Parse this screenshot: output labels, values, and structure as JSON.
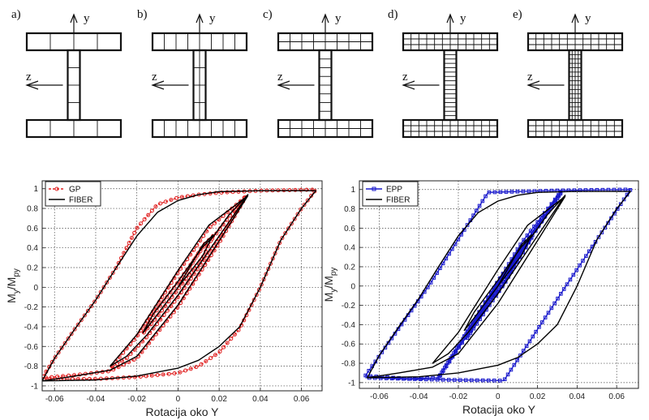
{
  "sections": [
    {
      "label": "a)",
      "y_axis": "y",
      "z_axis": "z",
      "flange_cols": 4,
      "flange_rows": 1,
      "web_cols": 1,
      "web_rows": 4
    },
    {
      "label": "b)",
      "y_axis": "y",
      "z_axis": "z",
      "flange_cols": 8,
      "flange_rows": 1,
      "web_cols": 2,
      "web_rows": 4
    },
    {
      "label": "c)",
      "y_axis": "y",
      "z_axis": "z",
      "flange_cols": 8,
      "flange_rows": 2,
      "web_cols": 1,
      "web_rows": 8
    },
    {
      "label": "d)",
      "y_axis": "y",
      "z_axis": "z",
      "flange_cols": 12,
      "flange_rows": 3,
      "web_cols": 1,
      "web_rows": 16
    },
    {
      "label": "e)",
      "y_axis": "y",
      "z_axis": "z",
      "flange_cols": 12,
      "flange_rows": 3,
      "web_cols": 4,
      "web_rows": 16
    }
  ],
  "chart_data": [
    {
      "type": "line",
      "xlabel": "Rotacija oko Y",
      "ylabel_main": "M",
      "ylabel_sub1": "y",
      "ylabel_mid": "/M",
      "ylabel_sub2": "py",
      "xlim": [
        -0.066,
        0.07
      ],
      "ylim": [
        -1.05,
        1.08
      ],
      "xticks": [
        -0.06,
        -0.04,
        -0.02,
        0,
        0.02,
        0.04,
        0.06
      ],
      "xtick_labels": [
        "-0.06",
        "-0.04",
        "-0.02",
        "0",
        "0.02",
        "0.04",
        "0.06"
      ],
      "yticks": [
        -1,
        -0.8,
        -0.6,
        -0.4,
        -0.2,
        0,
        0.2,
        0.4,
        0.6,
        0.8,
        1
      ],
      "ytick_labels": [
        "-1",
        "-0.8",
        "-0.6",
        "-0.4",
        "-0.2",
        "0",
        "0.2",
        "0.4",
        "0.6",
        "0.8",
        "1"
      ],
      "grid": true,
      "legend_position": "top-left",
      "series": [
        {
          "name": "GP",
          "color": "#e02020",
          "style": "dashed-circle-markers",
          "segments": [
            [
              [
                0,
                0
              ],
              [
                0.012,
                0.42
              ],
              [
                0.017,
                0.52
              ],
              [
                0.012,
                0.3
              ],
              [
                0,
                -0.02
              ],
              [
                -0.012,
                -0.35
              ],
              [
                -0.017,
                -0.47
              ],
              [
                -0.012,
                -0.28
              ],
              [
                0,
                0.05
              ],
              [
                0.012,
                0.4
              ],
              [
                0.017,
                0.5
              ]
            ],
            [
              [
                0.017,
                0.5
              ],
              [
                0.025,
                0.72
              ],
              [
                0.033,
                0.93
              ],
              [
                0.025,
                0.65
              ],
              [
                0.015,
                0.35
              ],
              [
                0,
                -0.1
              ],
              [
                -0.015,
                -0.5
              ],
              [
                -0.025,
                -0.72
              ],
              [
                -0.033,
                -0.82
              ],
              [
                -0.02,
                -0.5
              ],
              [
                0,
                0.15
              ],
              [
                0.015,
                0.6
              ],
              [
                0.033,
                0.92
              ]
            ],
            [
              [
                0.033,
                0.92
              ],
              [
                0.02,
                0.45
              ],
              [
                0,
                -0.2
              ],
              [
                -0.02,
                -0.72
              ],
              [
                -0.033,
                -0.85
              ],
              [
                -0.05,
                -0.89
              ],
              [
                -0.066,
                -0.92
              ],
              [
                -0.06,
                -0.72
              ],
              [
                -0.05,
                -0.42
              ],
              [
                -0.04,
                -0.13
              ],
              [
                -0.03,
                0.2
              ],
              [
                -0.02,
                0.6
              ],
              [
                -0.01,
                0.84
              ],
              [
                0,
                0.91
              ],
              [
                0.01,
                0.94
              ],
              [
                0.02,
                0.96
              ],
              [
                0.04,
                0.98
              ],
              [
                0.067,
                0.99
              ],
              [
                0.06,
                0.8
              ],
              [
                0.05,
                0.48
              ],
              [
                0.04,
                0.0
              ],
              [
                0.03,
                -0.42
              ],
              [
                0.02,
                -0.66
              ],
              [
                0.01,
                -0.8
              ],
              [
                0,
                -0.87
              ],
              [
                -0.02,
                -0.91
              ],
              [
                -0.04,
                -0.93
              ],
              [
                -0.066,
                -0.93
              ]
            ]
          ]
        },
        {
          "name": "FIBER",
          "color": "#000000",
          "style": "solid",
          "segments": [
            [
              [
                0,
                0
              ],
              [
                0.012,
                0.43
              ],
              [
                0.017,
                0.53
              ],
              [
                0.012,
                0.32
              ],
              [
                0,
                0.0
              ],
              [
                -0.012,
                -0.33
              ],
              [
                -0.017,
                -0.46
              ],
              [
                -0.012,
                -0.27
              ],
              [
                0,
                0.06
              ],
              [
                0.012,
                0.41
              ],
              [
                0.017,
                0.51
              ]
            ],
            [
              [
                0.017,
                0.51
              ],
              [
                0.025,
                0.74
              ],
              [
                0.034,
                0.94
              ],
              [
                0.025,
                0.67
              ],
              [
                0.015,
                0.37
              ],
              [
                0,
                -0.08
              ],
              [
                -0.015,
                -0.48
              ],
              [
                -0.025,
                -0.7
              ],
              [
                -0.033,
                -0.8
              ],
              [
                -0.02,
                -0.48
              ],
              [
                0,
                0.17
              ],
              [
                0.015,
                0.63
              ],
              [
                0.034,
                0.93
              ]
            ],
            [
              [
                0.034,
                0.93
              ],
              [
                0.02,
                0.47
              ],
              [
                0,
                -0.18
              ],
              [
                -0.02,
                -0.7
              ],
              [
                -0.033,
                -0.84
              ],
              [
                -0.05,
                -0.9
              ],
              [
                -0.066,
                -0.95
              ],
              [
                -0.06,
                -0.72
              ],
              [
                -0.05,
                -0.42
              ],
              [
                -0.04,
                -0.13
              ],
              [
                -0.03,
                0.2
              ],
              [
                -0.02,
                0.52
              ],
              [
                -0.01,
                0.76
              ],
              [
                0,
                0.88
              ],
              [
                0.01,
                0.94
              ],
              [
                0.02,
                0.97
              ],
              [
                0.04,
                0.98
              ],
              [
                0.067,
                0.98
              ],
              [
                0.06,
                0.8
              ],
              [
                0.05,
                0.48
              ],
              [
                0.04,
                0.0
              ],
              [
                0.03,
                -0.4
              ],
              [
                0.02,
                -0.6
              ],
              [
                0.01,
                -0.74
              ],
              [
                0,
                -0.82
              ],
              [
                -0.02,
                -0.9
              ],
              [
                -0.04,
                -0.94
              ],
              [
                -0.066,
                -0.95
              ]
            ]
          ]
        }
      ]
    },
    {
      "type": "line",
      "xlabel": "Rotacija oko Y",
      "ylabel_main": "M",
      "ylabel_sub1": "y",
      "ylabel_mid": "/M",
      "ylabel_sub2": "py",
      "xlim": [
        -0.07,
        0.071
      ],
      "ylim": [
        -1.06,
        1.09
      ],
      "xticks": [
        -0.06,
        -0.04,
        -0.02,
        0,
        0.02,
        0.04,
        0.06
      ],
      "xtick_labels": [
        "-0.06",
        "-0.04",
        "-0.02",
        "0",
        "0.02",
        "0.04",
        "0.06"
      ],
      "yticks": [
        -1,
        -0.8,
        -0.6,
        -0.4,
        -0.2,
        0,
        0.2,
        0.4,
        0.6,
        0.8,
        1
      ],
      "ytick_labels": [
        "-1",
        "-0.8",
        "-0.6",
        "-0.4",
        "-0.2",
        "0",
        "0.2",
        "0.4",
        "0.6",
        "0.8",
        "1"
      ],
      "grid": true,
      "legend_position": "top-left",
      "series": [
        {
          "name": "EPP",
          "color": "#1a1acc",
          "style": "solid-square-markers",
          "segments": [
            [
              [
                0,
                0
              ],
              [
                0.017,
                0.52
              ],
              [
                0.002,
                0.0
              ],
              [
                -0.017,
                -0.52
              ],
              [
                0,
                0.05
              ],
              [
                0.017,
                0.5
              ],
              [
                0.004,
                0.05
              ],
              [
                -0.016,
                -0.55
              ],
              [
                0,
                0.02
              ],
              [
                0.017,
                0.52
              ]
            ],
            [
              [
                0.017,
                0.52
              ],
              [
                0.032,
                0.97
              ],
              [
                0.012,
                0.4
              ],
              [
                -0.012,
                -0.4
              ],
              [
                -0.03,
                -0.95
              ],
              [
                -0.01,
                -0.3
              ],
              [
                0.012,
                0.45
              ],
              [
                0.032,
                0.98
              ],
              [
                0.028,
                0.85
              ],
              [
                0.005,
                0.15
              ],
              [
                -0.02,
                -0.62
              ],
              [
                -0.03,
                -0.95
              ]
            ],
            [
              [
                -0.03,
                -0.95
              ],
              [
                -0.045,
                -0.96
              ],
              [
                -0.067,
                -0.93
              ],
              [
                -0.035,
                0.0
              ],
              [
                -0.005,
                0.97
              ],
              [
                0.03,
                0.99
              ],
              [
                0.067,
                1.0
              ],
              [
                0.035,
                0.02
              ],
              [
                0.003,
                -0.98
              ],
              [
                -0.03,
                -0.97
              ],
              [
                -0.067,
                -0.95
              ]
            ]
          ]
        },
        {
          "name": "FIBER",
          "color": "#000000",
          "style": "solid",
          "segments": [
            [
              [
                0,
                0
              ],
              [
                0.012,
                0.43
              ],
              [
                0.017,
                0.53
              ],
              [
                0.012,
                0.32
              ],
              [
                0,
                0.0
              ],
              [
                -0.012,
                -0.33
              ],
              [
                -0.017,
                -0.46
              ],
              [
                -0.012,
                -0.27
              ],
              [
                0,
                0.06
              ],
              [
                0.012,
                0.41
              ],
              [
                0.017,
                0.51
              ]
            ],
            [
              [
                0.017,
                0.51
              ],
              [
                0.025,
                0.74
              ],
              [
                0.034,
                0.94
              ],
              [
                0.025,
                0.67
              ],
              [
                0.015,
                0.37
              ],
              [
                0,
                -0.08
              ],
              [
                -0.015,
                -0.48
              ],
              [
                -0.025,
                -0.7
              ],
              [
                -0.033,
                -0.8
              ],
              [
                -0.02,
                -0.48
              ],
              [
                0,
                0.17
              ],
              [
                0.015,
                0.63
              ],
              [
                0.034,
                0.93
              ]
            ],
            [
              [
                0.034,
                0.93
              ],
              [
                0.02,
                0.47
              ],
              [
                0,
                -0.18
              ],
              [
                -0.02,
                -0.7
              ],
              [
                -0.033,
                -0.84
              ],
              [
                -0.05,
                -0.9
              ],
              [
                -0.066,
                -0.95
              ],
              [
                -0.06,
                -0.72
              ],
              [
                -0.05,
                -0.42
              ],
              [
                -0.04,
                -0.13
              ],
              [
                -0.03,
                0.2
              ],
              [
                -0.02,
                0.52
              ],
              [
                -0.01,
                0.76
              ],
              [
                0,
                0.88
              ],
              [
                0.01,
                0.94
              ],
              [
                0.02,
                0.97
              ],
              [
                0.04,
                0.98
              ],
              [
                0.067,
                0.98
              ],
              [
                0.06,
                0.8
              ],
              [
                0.05,
                0.48
              ],
              [
                0.04,
                0.0
              ],
              [
                0.03,
                -0.4
              ],
              [
                0.02,
                -0.6
              ],
              [
                0.01,
                -0.74
              ],
              [
                0,
                -0.82
              ],
              [
                -0.02,
                -0.9
              ],
              [
                -0.04,
                -0.94
              ],
              [
                -0.066,
                -0.95
              ]
            ]
          ]
        }
      ]
    }
  ]
}
